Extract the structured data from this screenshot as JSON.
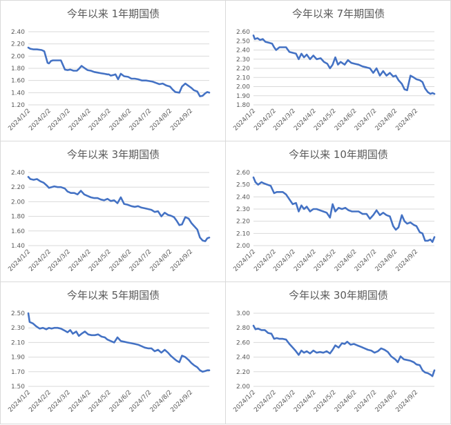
{
  "chart_data": [
    {
      "type": "line",
      "title": "今年以来 1年期国债",
      "x_tick_labels": [
        "2024/1/2",
        "2024/2/2",
        "2024/3/2",
        "2024/4/2",
        "2024/5/2",
        "2024/6/2",
        "2024/7/2",
        "2024/8/2",
        "2024/9/2"
      ],
      "y_ticks": [
        "2.40",
        "2.20",
        "2.00",
        "1.80",
        "1.60",
        "1.40",
        "1.20"
      ],
      "ylim": [
        1.2,
        2.4
      ],
      "grid": "horizontal",
      "line_color": "#4472c4",
      "series": [
        {
          "x": [
            "2024-01-02",
            "2024-01-05",
            "2024-01-10",
            "2024-01-15",
            "2024-01-22",
            "2024-01-26",
            "2024-01-31",
            "2024-02-02",
            "2024-02-05",
            "2024-02-08",
            "2024-02-10",
            "2024-02-15",
            "2024-02-20",
            "2024-02-26",
            "2024-03-01",
            "2024-03-05",
            "2024-03-10",
            "2024-03-15",
            "2024-03-18",
            "2024-03-22",
            "2024-03-27",
            "2024-03-31",
            "2024-04-05",
            "2024-04-10",
            "2024-04-15",
            "2024-04-20",
            "2024-04-25",
            "2024-04-30",
            "2024-05-02",
            "2024-05-05",
            "2024-05-09",
            "2024-05-12",
            "2024-05-16",
            "2024-05-20",
            "2024-05-25",
            "2024-05-31",
            "2024-06-05",
            "2024-06-10",
            "2024-06-15",
            "2024-06-21",
            "2024-06-27",
            "2024-07-02",
            "2024-07-07",
            "2024-07-12",
            "2024-07-17",
            "2024-07-22",
            "2024-07-27",
            "2024-08-02",
            "2024-08-06",
            "2024-08-10",
            "2024-08-16",
            "2024-08-20",
            "2024-08-25",
            "2024-08-30",
            "2024-09-03",
            "2024-09-07",
            "2024-09-12",
            "2024-09-16",
            "2024-09-20",
            "2024-09-24",
            "2024-09-27",
            "2024-09-30"
          ],
          "values": [
            2.14,
            2.12,
            2.11,
            2.11,
            2.1,
            2.08,
            1.89,
            1.88,
            1.92,
            1.93,
            1.93,
            1.93,
            1.93,
            1.78,
            1.77,
            1.78,
            1.76,
            1.76,
            1.79,
            1.84,
            1.8,
            1.77,
            1.76,
            1.74,
            1.73,
            1.72,
            1.71,
            1.7,
            1.7,
            1.68,
            1.69,
            1.7,
            1.62,
            1.71,
            1.67,
            1.66,
            1.63,
            1.63,
            1.62,
            1.6,
            1.6,
            1.59,
            1.58,
            1.56,
            1.54,
            1.55,
            1.52,
            1.5,
            1.45,
            1.41,
            1.4,
            1.5,
            1.55,
            1.51,
            1.48,
            1.44,
            1.42,
            1.34,
            1.35,
            1.39,
            1.41,
            1.4
          ]
        }
      ]
    },
    {
      "type": "line",
      "title": "今年以来 7年期国债",
      "x_tick_labels": [
        "2024/1/2",
        "2024/2/2",
        "2024/3/2",
        "2024/4/2",
        "2024/5/2",
        "2024/6/2",
        "2024/7/2",
        "2024/8/2",
        "2024/9/2"
      ],
      "y_ticks": [
        "2.60",
        "2.50",
        "2.40",
        "2.30",
        "2.20",
        "2.10",
        "2.00",
        "1.90",
        "1.80"
      ],
      "ylim": [
        1.8,
        2.6
      ],
      "grid": "horizontal",
      "line_color": "#4472c4",
      "series": [
        {
          "x": [
            "2024-01-02",
            "2024-01-04",
            "2024-01-08",
            "2024-01-12",
            "2024-01-16",
            "2024-01-20",
            "2024-01-25",
            "2024-01-30",
            "2024-02-02",
            "2024-02-05",
            "2024-02-10",
            "2024-02-15",
            "2024-02-20",
            "2024-02-25",
            "2024-03-01",
            "2024-03-06",
            "2024-03-10",
            "2024-03-14",
            "2024-03-18",
            "2024-03-22",
            "2024-03-27",
            "2024-04-01",
            "2024-04-06",
            "2024-04-12",
            "2024-04-17",
            "2024-04-22",
            "2024-04-26",
            "2024-04-30",
            "2024-05-04",
            "2024-05-08",
            "2024-05-12",
            "2024-05-18",
            "2024-05-23",
            "2024-05-28",
            "2024-06-02",
            "2024-06-08",
            "2024-06-14",
            "2024-06-20",
            "2024-06-25",
            "2024-06-30",
            "2024-07-05",
            "2024-07-10",
            "2024-07-15",
            "2024-07-20",
            "2024-07-25",
            "2024-07-30",
            "2024-08-03",
            "2024-08-07",
            "2024-08-12",
            "2024-08-16",
            "2024-08-20",
            "2024-08-25",
            "2024-08-30",
            "2024-09-03",
            "2024-09-08",
            "2024-09-12",
            "2024-09-16",
            "2024-09-20",
            "2024-09-24",
            "2024-09-27",
            "2024-09-30"
          ],
          "values": [
            2.56,
            2.52,
            2.53,
            2.51,
            2.52,
            2.49,
            2.48,
            2.47,
            2.43,
            2.4,
            2.43,
            2.43,
            2.43,
            2.38,
            2.37,
            2.36,
            2.3,
            2.36,
            2.32,
            2.35,
            2.3,
            2.34,
            2.3,
            2.31,
            2.27,
            2.25,
            2.2,
            2.24,
            2.32,
            2.24,
            2.27,
            2.24,
            2.29,
            2.26,
            2.25,
            2.24,
            2.22,
            2.21,
            2.2,
            2.15,
            2.2,
            2.12,
            2.17,
            2.12,
            2.15,
            2.11,
            2.12,
            2.07,
            2.03,
            1.97,
            1.96,
            2.12,
            2.1,
            2.08,
            2.07,
            2.05,
            1.98,
            1.94,
            1.92,
            1.93,
            1.92
          ]
        }
      ]
    },
    {
      "type": "line",
      "title": "今年以来 3年期国债",
      "x_tick_labels": [
        "2024/1/2",
        "2024/2/2",
        "2024/3/2",
        "2024/4/2",
        "2024/5/2",
        "2024/6/2",
        "2024/7/2",
        "2024/8/2",
        "2024/9/2"
      ],
      "y_ticks": [
        "2.40",
        "2.20",
        "2.00",
        "1.80",
        "1.60",
        "1.40"
      ],
      "ylim": [
        1.4,
        2.4
      ],
      "grid": "horizontal",
      "line_color": "#4472c4",
      "series": [
        {
          "x": [
            "2024-01-02",
            "2024-01-05",
            "2024-01-10",
            "2024-01-15",
            "2024-01-20",
            "2024-01-25",
            "2024-01-30",
            "2024-02-02",
            "2024-02-06",
            "2024-02-10",
            "2024-02-15",
            "2024-02-20",
            "2024-02-26",
            "2024-03-01",
            "2024-03-06",
            "2024-03-11",
            "2024-03-16",
            "2024-03-21",
            "2024-03-26",
            "2024-03-31",
            "2024-04-05",
            "2024-04-10",
            "2024-04-15",
            "2024-04-20",
            "2024-04-25",
            "2024-04-30",
            "2024-05-05",
            "2024-05-10",
            "2024-05-15",
            "2024-05-20",
            "2024-05-25",
            "2024-05-30",
            "2024-06-05",
            "2024-06-10",
            "2024-06-15",
            "2024-06-20",
            "2024-06-25",
            "2024-06-30",
            "2024-07-05",
            "2024-07-10",
            "2024-07-15",
            "2024-07-20",
            "2024-07-25",
            "2024-07-30",
            "2024-08-03",
            "2024-08-08",
            "2024-08-12",
            "2024-08-16",
            "2024-08-20",
            "2024-08-25",
            "2024-08-30",
            "2024-09-03",
            "2024-09-07",
            "2024-09-12",
            "2024-09-16",
            "2024-09-20",
            "2024-09-24",
            "2024-09-27",
            "2024-09-30"
          ],
          "values": [
            2.34,
            2.31,
            2.3,
            2.31,
            2.28,
            2.26,
            2.22,
            2.19,
            2.2,
            2.21,
            2.2,
            2.2,
            2.18,
            2.14,
            2.12,
            2.12,
            2.1,
            2.15,
            2.1,
            2.08,
            2.06,
            2.05,
            2.05,
            2.03,
            2.02,
            2.04,
            2.01,
            2.02,
            1.98,
            2.06,
            1.97,
            1.96,
            1.94,
            1.93,
            1.94,
            1.92,
            1.91,
            1.9,
            1.89,
            1.86,
            1.87,
            1.8,
            1.85,
            1.82,
            1.81,
            1.79,
            1.74,
            1.68,
            1.69,
            1.79,
            1.77,
            1.71,
            1.67,
            1.62,
            1.51,
            1.47,
            1.46,
            1.5,
            1.51
          ]
        }
      ]
    },
    {
      "type": "line",
      "title": "今年以来 10年期国债",
      "x_tick_labels": [
        "2024/1/2",
        "2024/2/2",
        "2024/3/2",
        "2024/4/2",
        "2024/5/2",
        "2024/6/2",
        "2024/7/2",
        "2024/8/2",
        "2024/9/2"
      ],
      "y_ticks": [
        "2.60",
        "2.50",
        "2.40",
        "2.30",
        "2.20",
        "2.10",
        "2.00"
      ],
      "ylim": [
        2.0,
        2.6
      ],
      "grid": "horizontal",
      "line_color": "#4472c4",
      "series": [
        {
          "x": [
            "2024-01-02",
            "2024-01-05",
            "2024-01-09",
            "2024-01-14",
            "2024-01-18",
            "2024-01-23",
            "2024-01-28",
            "2024-02-02",
            "2024-02-06",
            "2024-02-10",
            "2024-02-15",
            "2024-02-20",
            "2024-02-25",
            "2024-03-01",
            "2024-03-06",
            "2024-03-10",
            "2024-03-14",
            "2024-03-18",
            "2024-03-22",
            "2024-03-27",
            "2024-04-01",
            "2024-04-06",
            "2024-04-11",
            "2024-04-16",
            "2024-04-21",
            "2024-04-26",
            "2024-04-30",
            "2024-05-04",
            "2024-05-09",
            "2024-05-14",
            "2024-05-19",
            "2024-05-24",
            "2024-05-29",
            "2024-06-03",
            "2024-06-08",
            "2024-06-14",
            "2024-06-20",
            "2024-06-25",
            "2024-06-30",
            "2024-07-05",
            "2024-07-10",
            "2024-07-15",
            "2024-07-20",
            "2024-07-25",
            "2024-07-30",
            "2024-08-03",
            "2024-08-07",
            "2024-08-12",
            "2024-08-16",
            "2024-08-20",
            "2024-08-25",
            "2024-08-30",
            "2024-09-03",
            "2024-09-08",
            "2024-09-12",
            "2024-09-16",
            "2024-09-20",
            "2024-09-24",
            "2024-09-27",
            "2024-09-30"
          ],
          "values": [
            2.56,
            2.52,
            2.5,
            2.52,
            2.51,
            2.5,
            2.49,
            2.43,
            2.44,
            2.44,
            2.44,
            2.42,
            2.38,
            2.34,
            2.35,
            2.28,
            2.33,
            2.3,
            2.32,
            2.28,
            2.3,
            2.3,
            2.29,
            2.28,
            2.27,
            2.23,
            2.34,
            2.28,
            2.31,
            2.3,
            2.31,
            2.29,
            2.28,
            2.28,
            2.28,
            2.26,
            2.26,
            2.22,
            2.25,
            2.29,
            2.25,
            2.27,
            2.25,
            2.24,
            2.16,
            2.13,
            2.15,
            2.25,
            2.2,
            2.18,
            2.19,
            2.17,
            2.16,
            2.11,
            2.1,
            2.04,
            2.04,
            2.05,
            2.03,
            2.07
          ]
        }
      ]
    },
    {
      "type": "line",
      "title": "今年以来 5年期国债",
      "x_tick_labels": [
        "2024/1/2",
        "2024/2/2",
        "2024/3/2",
        "2024/4/2",
        "2024/5/2",
        "2024/6/2",
        "2024/7/2",
        "2024/8/2",
        "2024/9/2"
      ],
      "y_ticks": [
        "2.50",
        "2.30",
        "2.10",
        "1.90",
        "1.70",
        "1.50"
      ],
      "ylim": [
        1.5,
        2.5
      ],
      "grid": "horizontal",
      "line_color": "#4472c4",
      "series": [
        {
          "x": [
            "2024-01-02",
            "2024-01-04",
            "2024-01-09",
            "2024-01-14",
            "2024-01-19",
            "2024-01-24",
            "2024-01-29",
            "2024-02-02",
            "2024-02-06",
            "2024-02-10",
            "2024-02-15",
            "2024-02-20",
            "2024-02-26",
            "2024-03-01",
            "2024-03-05",
            "2024-03-09",
            "2024-03-14",
            "2024-03-18",
            "2024-03-22",
            "2024-03-27",
            "2024-04-01",
            "2024-04-06",
            "2024-04-11",
            "2024-04-16",
            "2024-04-21",
            "2024-04-26",
            "2024-04-30",
            "2024-05-05",
            "2024-05-10",
            "2024-05-15",
            "2024-05-20",
            "2024-05-25",
            "2024-05-30",
            "2024-06-05",
            "2024-06-10",
            "2024-06-15",
            "2024-06-20",
            "2024-06-25",
            "2024-06-30",
            "2024-07-05",
            "2024-07-10",
            "2024-07-15",
            "2024-07-20",
            "2024-07-25",
            "2024-07-30",
            "2024-08-03",
            "2024-08-08",
            "2024-08-12",
            "2024-08-16",
            "2024-08-20",
            "2024-08-25",
            "2024-08-30",
            "2024-09-03",
            "2024-09-07",
            "2024-09-12",
            "2024-09-16",
            "2024-09-20",
            "2024-09-24",
            "2024-09-27",
            "2024-09-30"
          ],
          "values": [
            2.5,
            2.38,
            2.36,
            2.32,
            2.29,
            2.3,
            2.28,
            2.3,
            2.29,
            2.3,
            2.3,
            2.29,
            2.26,
            2.24,
            2.27,
            2.22,
            2.25,
            2.19,
            2.22,
            2.25,
            2.21,
            2.2,
            2.2,
            2.21,
            2.18,
            2.17,
            2.14,
            2.12,
            2.1,
            2.17,
            2.12,
            2.11,
            2.1,
            2.09,
            2.08,
            2.07,
            2.05,
            2.03,
            2.02,
            2.02,
            1.98,
            2.0,
            1.96,
            2.0,
            1.96,
            1.92,
            1.88,
            1.85,
            1.83,
            1.92,
            1.9,
            1.86,
            1.82,
            1.79,
            1.76,
            1.72,
            1.7,
            1.71,
            1.72,
            1.72
          ]
        }
      ]
    },
    {
      "type": "line",
      "title": "今年以来 30年期国债",
      "x_tick_labels": [
        "2024/1/2",
        "2024/2/2",
        "2024/3/2",
        "2024/4/2",
        "2024/5/2",
        "2024/6/2",
        "2024/7/2",
        "2024/8/2",
        "2024/9/2"
      ],
      "y_ticks": [
        "3.00",
        "2.80",
        "2.60",
        "2.40",
        "2.20",
        "2.00"
      ],
      "ylim": [
        2.0,
        3.0
      ],
      "grid": "horizontal",
      "line_color": "#4472c4",
      "series": [
        {
          "x": [
            "2024-01-02",
            "2024-01-05",
            "2024-01-09",
            "2024-01-14",
            "2024-01-19",
            "2024-01-24",
            "2024-01-29",
            "2024-02-02",
            "2024-02-06",
            "2024-02-10",
            "2024-02-15",
            "2024-02-20",
            "2024-02-25",
            "2024-03-01",
            "2024-03-05",
            "2024-03-10",
            "2024-03-14",
            "2024-03-18",
            "2024-03-22",
            "2024-03-27",
            "2024-04-01",
            "2024-04-06",
            "2024-04-11",
            "2024-04-16",
            "2024-04-21",
            "2024-04-26",
            "2024-04-30",
            "2024-05-04",
            "2024-05-09",
            "2024-05-14",
            "2024-05-18",
            "2024-05-22",
            "2024-05-27",
            "2024-06-01",
            "2024-06-06",
            "2024-06-12",
            "2024-06-17",
            "2024-06-22",
            "2024-06-27",
            "2024-07-02",
            "2024-07-07",
            "2024-07-12",
            "2024-07-17",
            "2024-07-22",
            "2024-07-27",
            "2024-08-02",
            "2024-08-06",
            "2024-08-10",
            "2024-08-15",
            "2024-08-20",
            "2024-08-25",
            "2024-08-30",
            "2024-09-03",
            "2024-09-08",
            "2024-09-12",
            "2024-09-16",
            "2024-09-20",
            "2024-09-24",
            "2024-09-27",
            "2024-09-30"
          ],
          "values": [
            2.83,
            2.78,
            2.79,
            2.77,
            2.77,
            2.73,
            2.72,
            2.65,
            2.66,
            2.65,
            2.65,
            2.64,
            2.58,
            2.53,
            2.49,
            2.43,
            2.49,
            2.46,
            2.48,
            2.45,
            2.49,
            2.46,
            2.47,
            2.46,
            2.48,
            2.45,
            2.5,
            2.56,
            2.53,
            2.59,
            2.58,
            2.61,
            2.57,
            2.58,
            2.56,
            2.54,
            2.52,
            2.5,
            2.49,
            2.46,
            2.48,
            2.52,
            2.5,
            2.47,
            2.41,
            2.37,
            2.33,
            2.41,
            2.37,
            2.36,
            2.35,
            2.33,
            2.3,
            2.29,
            2.22,
            2.19,
            2.18,
            2.16,
            2.14,
            2.22
          ]
        }
      ]
    }
  ]
}
